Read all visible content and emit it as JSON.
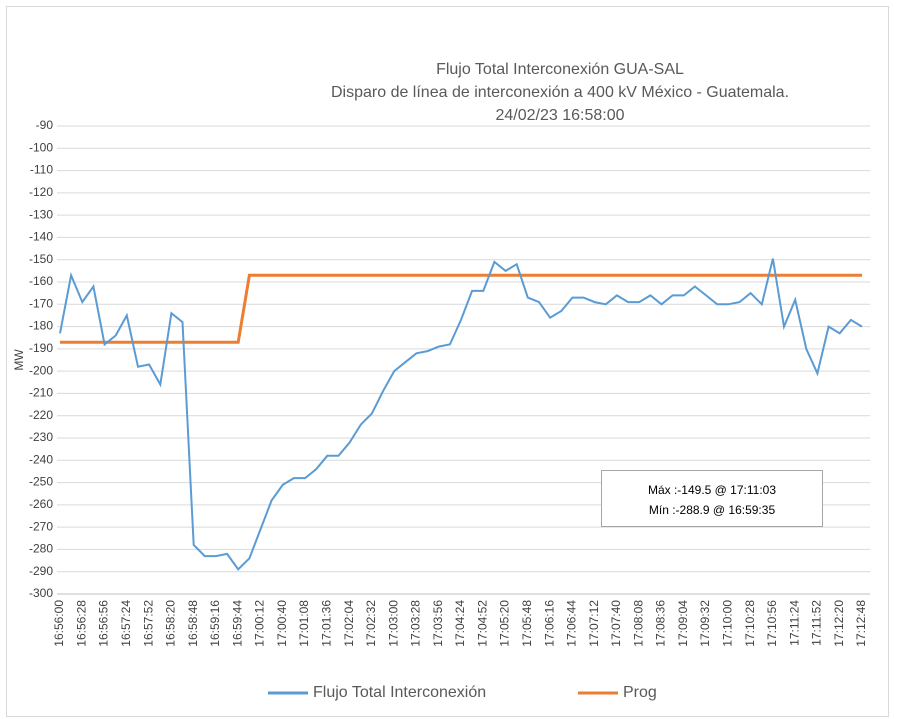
{
  "chart_data": {
    "type": "line",
    "title": [
      "Flujo Total Interconexión GUA-SAL",
      "Disparo de línea de interconexión a 400 kV México - Guatemala.",
      "24/02/23 16:58:00"
    ],
    "y_label": "MW",
    "categories": [
      "16:56:00",
      null,
      "16:56:28",
      null,
      "16:56:56",
      null,
      "16:57:24",
      null,
      "16:57:52",
      null,
      "16:58:20",
      null,
      "16:58:48",
      null,
      "16:59:16",
      null,
      "16:59:44",
      null,
      "17:00:12",
      null,
      "17:00:40",
      null,
      "17:01:08",
      null,
      "17:01:36",
      null,
      "17:02:04",
      null,
      "17:02:32",
      null,
      "17:03:00",
      null,
      "17:03:28",
      null,
      "17:03:56",
      null,
      "17:04:24",
      null,
      "17:04:52",
      null,
      "17:05:20",
      null,
      "17:05:48",
      null,
      "17:06:16",
      null,
      "17:06:44",
      null,
      "17:07:12",
      null,
      "17:07:40",
      null,
      "17:08:08",
      null,
      "17:08:36",
      null,
      "17:09:04",
      null,
      "17:09:32",
      null,
      "17:10:00",
      null,
      "17:10:28",
      null,
      "17:10:56",
      null,
      "17:11:24",
      null,
      "17:11:52",
      null,
      "17:12:20",
      null,
      "17:12:48"
    ],
    "series": [
      {
        "name": "Flujo Total Interconexión",
        "color": "#5b9bd5",
        "values": [
          -183,
          -157,
          -169,
          -162,
          -188,
          -184,
          -175,
          -198,
          -197,
          -206,
          -174,
          -178,
          -278,
          -283,
          -283,
          -282,
          -288.9,
          -284,
          -271,
          -258,
          -251,
          -248,
          -248,
          -244,
          -238,
          -238,
          -232,
          -224,
          -219,
          -209,
          -200,
          -196,
          -192,
          -191,
          -189,
          -188,
          -177,
          -164,
          -164,
          -151,
          -155,
          -152,
          -167,
          -169,
          -176,
          -173,
          -167,
          -167,
          -169,
          -170,
          -166,
          -169,
          -169,
          -166,
          -170,
          -166,
          -166,
          -162,
          -166,
          -170,
          -170,
          -169,
          -165,
          -170,
          -149.5,
          -180,
          -168,
          -190,
          -201,
          -180,
          -183,
          -177,
          -180
        ]
      },
      {
        "name": "Prog",
        "color": "#ed7d31",
        "values": [
          -187,
          -187,
          -187,
          -187,
          -187,
          -187,
          -187,
          -187,
          -187,
          -187,
          -187,
          -187,
          -187,
          -187,
          -187,
          -187,
          -187,
          -157,
          -157,
          -157,
          -157,
          -157,
          -157,
          -157,
          -157,
          -157,
          -157,
          -157,
          -157,
          -157,
          -157,
          -157,
          -157,
          -157,
          -157,
          -157,
          -157,
          -157,
          -157,
          -157,
          -157,
          -157,
          -157,
          -157,
          -157,
          -157,
          -157,
          -157,
          -157,
          -157,
          -157,
          -157,
          -157,
          -157,
          -157,
          -157,
          -157,
          -157,
          -157,
          -157,
          -157,
          -157,
          -157,
          -157,
          -157,
          -157,
          -157,
          -157,
          -157,
          -157,
          -157,
          -157,
          -157
        ]
      }
    ],
    "ylim": [
      -300,
      -90
    ],
    "yticks": [
      -300,
      -290,
      -280,
      -270,
      -260,
      -250,
      -240,
      -230,
      -220,
      -210,
      -200,
      -190,
      -180,
      -170,
      -160,
      -150,
      -140,
      -130,
      -120,
      -110,
      -100,
      -90
    ],
    "grid": true,
    "annotations": [
      "Máx :-149.5 @ 17:11:03",
      "Mín :-288.9 @ 16:59:35"
    ]
  }
}
